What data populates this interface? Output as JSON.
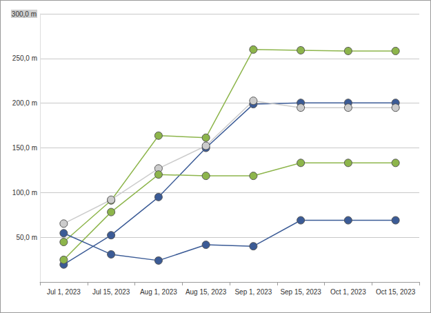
{
  "chart_data": {
    "type": "line",
    "categories": [
      "Jul 1, 2023",
      "Jul 15, 2023",
      "Aug 1, 2023",
      "Aug 15, 2023",
      "Sep 1, 2023",
      "Sep 15, 2023",
      "Oct 1, 2023",
      "Oct 15, 2023"
    ],
    "series": [
      {
        "color": "#8db54b",
        "values": [
          44.7,
          91.2,
          163.7,
          161.4,
          260.0,
          259.2,
          258.4,
          258.4
        ]
      },
      {
        "color": "#3b5b96",
        "values": [
          19.5,
          52.3,
          95.0,
          150.0,
          198.9,
          200.4,
          200.4,
          200.4
        ]
      },
      {
        "color": "#cccccc",
        "values": [
          65.3,
          92.0,
          127.0,
          152.3,
          202.7,
          195.0,
          195.0,
          195.0
        ]
      },
      {
        "color": "#8db54b",
        "values": [
          24.8,
          78.2,
          120.2,
          118.7,
          118.7,
          133.2,
          133.2,
          133.2
        ]
      },
      {
        "color": "#3b5b96",
        "values": [
          54.6,
          30.9,
          24.0,
          41.6,
          40.0,
          69.0,
          69.0,
          69.0
        ]
      }
    ],
    "ylim": [
      0,
      300
    ],
    "yticks": [
      {
        "value": 50,
        "label": "50,0 m"
      },
      {
        "value": 100,
        "label": "100,0 m"
      },
      {
        "value": 150,
        "label": "150,0 m"
      },
      {
        "value": 200,
        "label": "200,0 m"
      },
      {
        "value": 250,
        "label": "250,0 m"
      },
      {
        "value": 300,
        "label": "300,0 m"
      }
    ],
    "grid": true,
    "marker": "circle"
  }
}
